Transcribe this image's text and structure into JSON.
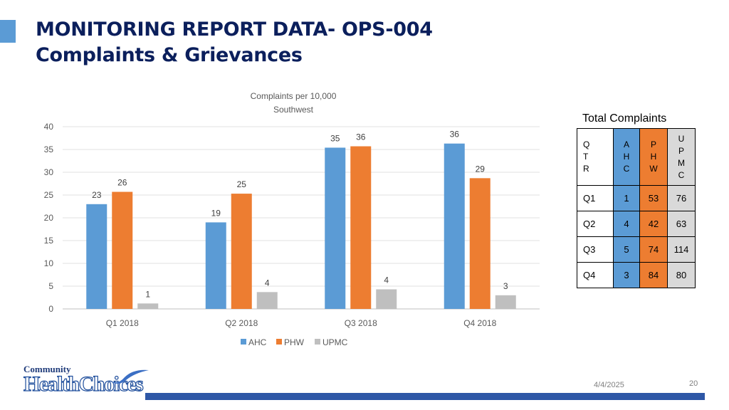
{
  "slide": {
    "title_line1": "MONITORING REPORT DATA- OPS-004",
    "title_line2": "Complaints & Grievances",
    "date": "4/4/2025",
    "page_number": "20",
    "logo_line1": "Community",
    "logo_line2": "HealthChoices"
  },
  "colors": {
    "AHC": "#5b9bd5",
    "PHW": "#ed7d31",
    "UPMC": "#bfbfbf",
    "title": "#0b1f5c",
    "footer_bar": "#2e57a6"
  },
  "chart_data": {
    "type": "bar",
    "title": "Complaints per 10,000",
    "subtitle": "Southwest",
    "categories": [
      "Q1 2018",
      "Q2 2018",
      "Q3 2018",
      "Q4 2018"
    ],
    "series": [
      {
        "name": "AHC",
        "values": [
          23,
          19,
          35.4,
          36.3
        ],
        "labels": [
          "23",
          "19",
          "35",
          "36"
        ]
      },
      {
        "name": "PHW",
        "values": [
          25.7,
          25.3,
          35.7,
          28.7
        ],
        "labels": [
          "26",
          "25",
          "36",
          "29"
        ]
      },
      {
        "name": "UPMC",
        "values": [
          1.2,
          3.7,
          4.3,
          3
        ],
        "labels": [
          "1",
          "4",
          "4",
          "3"
        ]
      }
    ],
    "ylim": [
      0,
      40
    ],
    "yticks": [
      "0",
      "5",
      "10",
      "15",
      "20",
      "25",
      "30",
      "35",
      "40"
    ],
    "grid": true,
    "legend": "bottom"
  },
  "table": {
    "title": "Total Complaints",
    "headers": [
      [
        "Q",
        "T",
        "R"
      ],
      [
        "A",
        "H",
        "C"
      ],
      [
        "P",
        "H",
        "W"
      ],
      [
        "U",
        "P",
        "M",
        "C"
      ]
    ],
    "rows": [
      [
        "Q1",
        "1",
        "53",
        "76"
      ],
      [
        "Q2",
        "4",
        "42",
        "63"
      ],
      [
        "Q3",
        "5",
        "74",
        "114"
      ],
      [
        "Q4",
        "3",
        "84",
        "80"
      ]
    ]
  }
}
